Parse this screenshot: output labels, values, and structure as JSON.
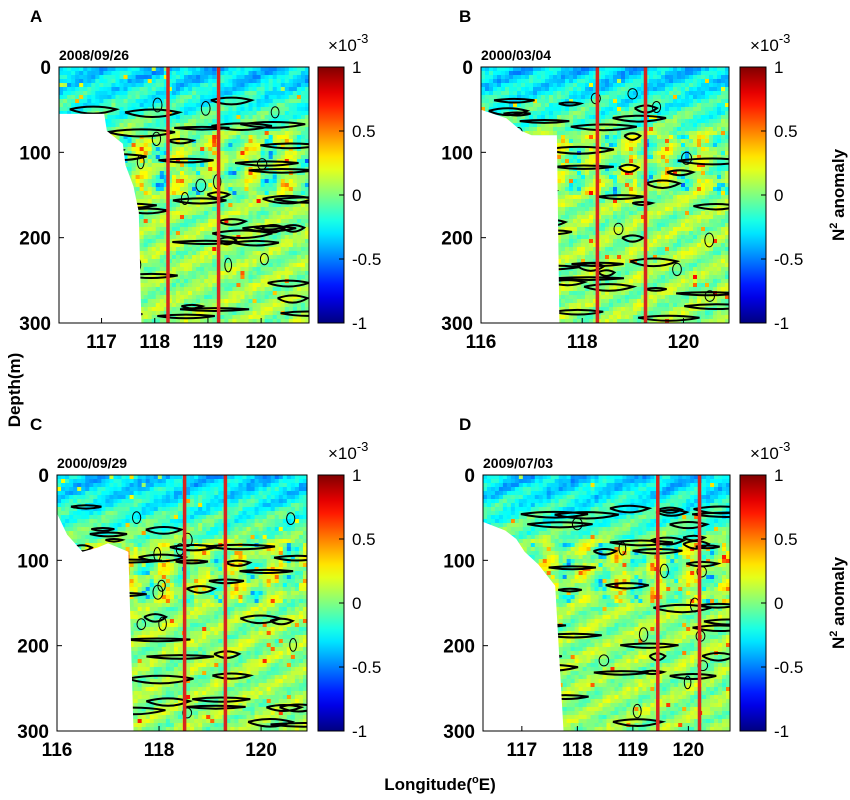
{
  "figure": {
    "ylabel": "Depth(m)",
    "xlabel": "Longitude(",
    "xlabel_sup": "o",
    "xlabel_end": "E)",
    "colorbar_label_main": "N",
    "colorbar_label_sup": "2",
    "colorbar_label_end": " anomaly",
    "colorbar_exponent_prefix": "×10",
    "colorbar_exponent_sup": "-3"
  },
  "colors": {
    "section_line": "#d7261e",
    "contour": "#000000"
  },
  "chart_data": [
    {
      "panel": "A",
      "type": "heatmap",
      "date": "2008/09/26",
      "xlim": [
        116.2,
        120.9
      ],
      "ylim": [
        0,
        300
      ],
      "y_reversed": true,
      "xticks": [
        117,
        118,
        119,
        120
      ],
      "yticks": [
        0,
        100,
        200,
        300
      ],
      "section_lines_lon": [
        118.25,
        119.2
      ],
      "colorbar": true,
      "colorbar_ticks": [
        1,
        0.5,
        0,
        -0.5,
        -1
      ],
      "colorbar_range": [
        -1,
        1
      ],
      "bathymetry": [
        [
          116.2,
          55
        ],
        [
          117.05,
          55
        ],
        [
          117.1,
          75
        ],
        [
          117.4,
          90
        ],
        [
          117.45,
          115
        ],
        [
          117.6,
          140
        ],
        [
          117.7,
          170
        ],
        [
          117.75,
          300
        ]
      ]
    },
    {
      "panel": "B",
      "type": "heatmap",
      "date": "2000/03/04",
      "xlim": [
        116.0,
        120.9
      ],
      "ylim": [
        0,
        300
      ],
      "y_reversed": true,
      "xticks": [
        116,
        118,
        120
      ],
      "yticks": [
        0,
        100,
        200,
        300
      ],
      "section_lines_lon": [
        118.3,
        119.25
      ],
      "colorbar": true,
      "colorbar_ticks": [
        1,
        0.5,
        0,
        -0.5,
        -1
      ],
      "colorbar_range": [
        -1,
        1
      ],
      "bathymetry": [
        [
          116.0,
          50
        ],
        [
          116.5,
          60
        ],
        [
          116.8,
          75
        ],
        [
          117.0,
          80
        ],
        [
          117.5,
          80
        ],
        [
          117.55,
          300
        ]
      ]
    },
    {
      "panel": "C",
      "type": "heatmap",
      "date": "2000/09/29",
      "xlim": [
        116.0,
        120.9
      ],
      "ylim": [
        0,
        300
      ],
      "y_reversed": true,
      "xticks": [
        116,
        118,
        120
      ],
      "yticks": [
        0,
        100,
        200,
        300
      ],
      "section_lines_lon": [
        118.5,
        119.3
      ],
      "colorbar": true,
      "colorbar_ticks": [
        1,
        0.5,
        0,
        -0.5,
        -1
      ],
      "colorbar_range": [
        -1,
        1
      ],
      "bathymetry": [
        [
          116.0,
          45
        ],
        [
          116.2,
          70
        ],
        [
          116.5,
          90
        ],
        [
          116.8,
          85
        ],
        [
          117.0,
          80
        ],
        [
          117.4,
          90
        ],
        [
          117.5,
          300
        ]
      ]
    },
    {
      "panel": "D",
      "type": "heatmap",
      "date": "2009/07/03",
      "xlim": [
        116.3,
        120.75
      ],
      "ylim": [
        0,
        300
      ],
      "y_reversed": true,
      "xticks": [
        117,
        118,
        119,
        120
      ],
      "yticks": [
        0,
        100,
        200,
        300
      ],
      "section_lines_lon": [
        119.45,
        120.2
      ],
      "colorbar": true,
      "colorbar_ticks": [
        1,
        0.5,
        0,
        -0.5,
        -1
      ],
      "colorbar_range": [
        -1,
        1
      ],
      "bathymetry": [
        [
          116.3,
          55
        ],
        [
          116.7,
          65
        ],
        [
          116.9,
          75
        ],
        [
          117.05,
          90
        ],
        [
          117.3,
          105
        ],
        [
          117.6,
          130
        ],
        [
          117.75,
          300
        ]
      ]
    }
  ]
}
